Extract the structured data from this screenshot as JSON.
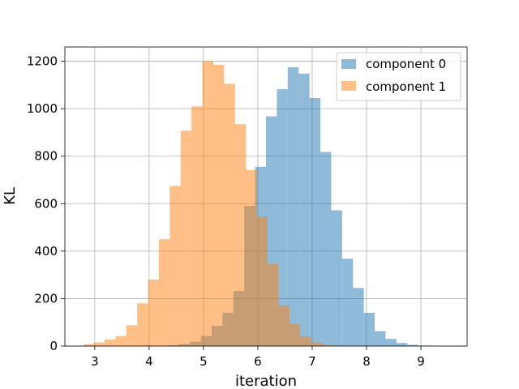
{
  "chart_data": {
    "type": "bar",
    "title": "",
    "xlabel": "iteration",
    "ylabel": "KL",
    "xlim": [
      2.45,
      9.85
    ],
    "ylim": [
      0,
      1260
    ],
    "xticks": [
      3,
      4,
      5,
      6,
      7,
      8,
      9
    ],
    "yticks": [
      0,
      200,
      400,
      600,
      800,
      1000,
      1200
    ],
    "grid": true,
    "legend_position": "top-right",
    "series": [
      {
        "name": "component 0",
        "color": "#1f77b4",
        "opacity": 0.5,
        "bin_edges": [
          4.35,
          4.55,
          4.75,
          4.95,
          5.15,
          5.35,
          5.55,
          5.75,
          5.95,
          6.15,
          6.35,
          6.55,
          6.75,
          6.95,
          7.15,
          7.35,
          7.55,
          7.75,
          7.95,
          8.15,
          8.35,
          8.55,
          8.75,
          8.95,
          9.15,
          9.35
        ],
        "counts": [
          3,
          8,
          18,
          42,
          85,
          140,
          232,
          590,
          755,
          968,
          1082,
          1175,
          1148,
          1045,
          818,
          572,
          368,
          245,
          140,
          63,
          30,
          13,
          5,
          2,
          1
        ]
      },
      {
        "name": "component 1",
        "color": "#ff7f0e",
        "opacity": 0.5,
        "bin_edges": [
          2.8,
          2.98,
          3.18,
          3.38,
          3.58,
          3.78,
          3.98,
          4.18,
          4.38,
          4.58,
          4.78,
          4.98,
          5.18,
          5.38,
          5.58,
          5.78,
          5.98,
          6.18,
          6.38,
          6.58,
          6.78,
          6.98,
          7.18,
          7.38
        ],
        "counts": [
          8,
          15,
          28,
          42,
          88,
          180,
          280,
          450,
          675,
          908,
          1010,
          1200,
          1185,
          1105,
          935,
          742,
          545,
          345,
          170,
          92,
          40,
          15,
          5
        ]
      }
    ]
  }
}
